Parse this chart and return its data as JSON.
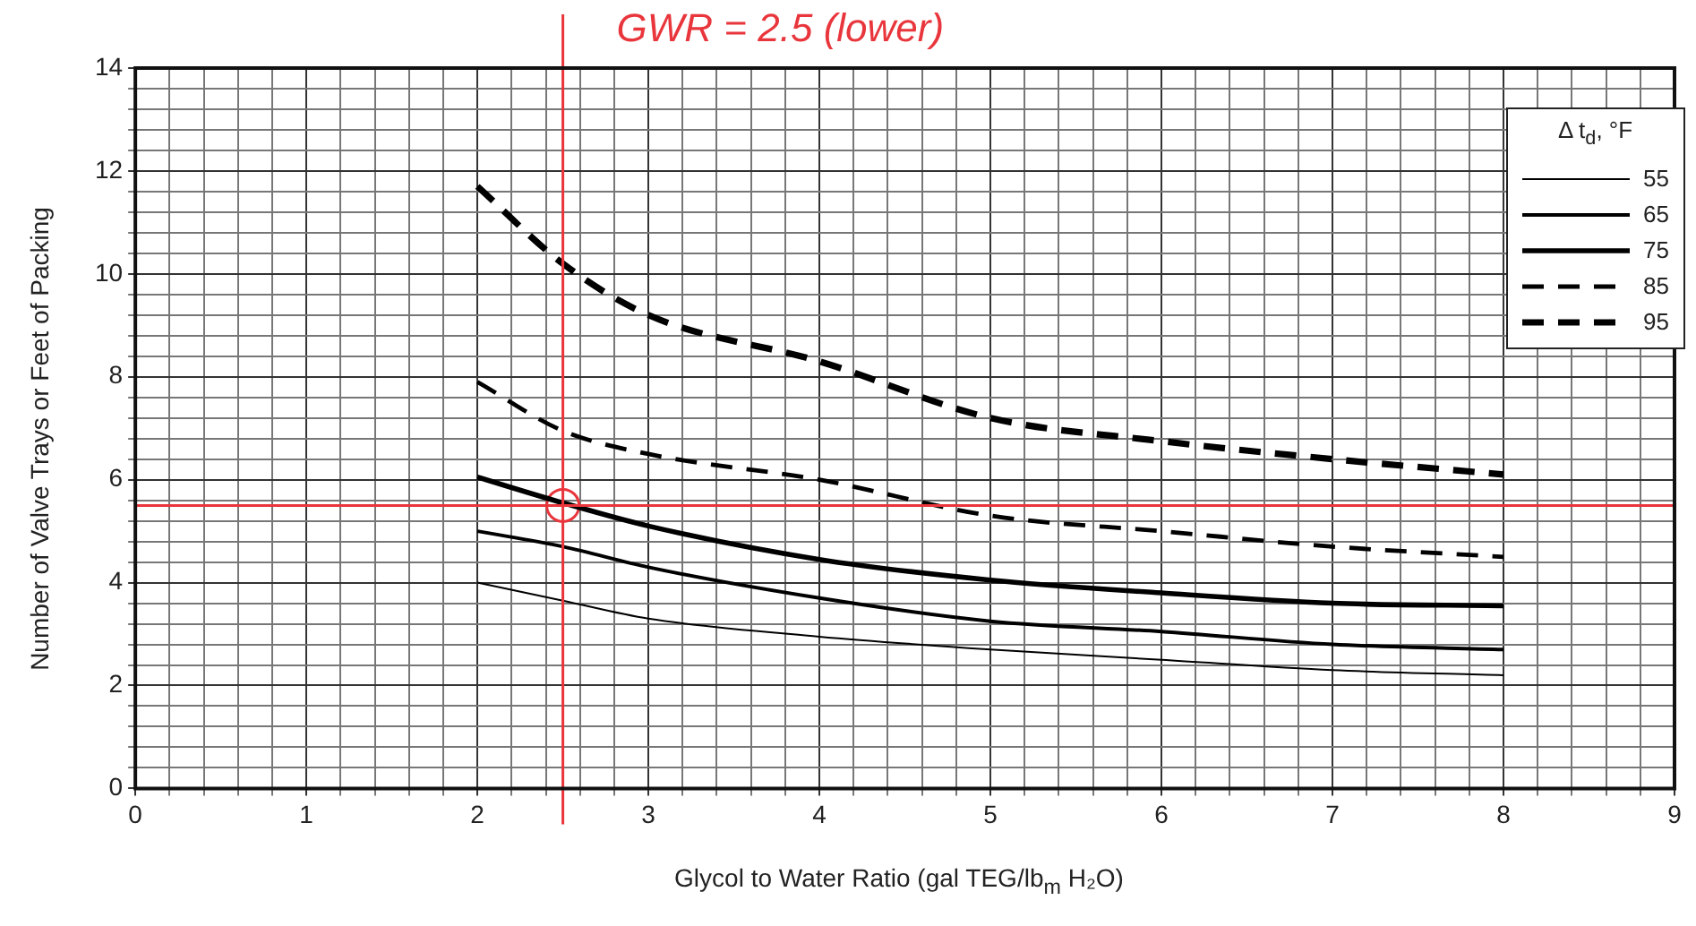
{
  "chart_data": {
    "type": "line",
    "xlabel": "Glycol to Water Ratio (gal TEG/lb$_{m}$ H₂O)",
    "ylabel": "Number of Valve Trays or Feet of Packing",
    "legend_title": "Δ t$_{d}$, °F",
    "x": [
      2,
      2.5,
      3,
      4,
      5,
      6,
      7,
      8
    ],
    "series": [
      {
        "name": "55",
        "color": "#000000",
        "line_style": "solid",
        "values": [
          4.0,
          3.65,
          3.3,
          2.95,
          2.7,
          2.5,
          2.3,
          2.2
        ]
      },
      {
        "name": "65",
        "color": "#000000",
        "line_style": "solid",
        "values": [
          5.0,
          4.7,
          4.3,
          3.7,
          3.25,
          3.05,
          2.8,
          2.7
        ]
      },
      {
        "name": "75",
        "color": "#000000",
        "line_style": "solid",
        "values": [
          6.05,
          5.55,
          5.1,
          4.45,
          4.05,
          3.8,
          3.6,
          3.55
        ]
      },
      {
        "name": "85",
        "color": "#000000",
        "line_style": "dashed",
        "values": [
          7.9,
          6.95,
          6.5,
          6.0,
          5.3,
          5.0,
          4.7,
          4.5
        ]
      },
      {
        "name": "95",
        "color": "#000000",
        "line_style": "dashed",
        "values": [
          11.7,
          10.2,
          9.2,
          8.3,
          7.2,
          6.75,
          6.4,
          6.1
        ]
      },
      {
        "type": "scatter",
        "x": [
          2.5
        ],
        "values": [
          5.5
        ],
        "color": "#e8363c",
        "marker": "circle"
      }
    ],
    "ref_lines": [
      {
        "axis": "x",
        "value": 2.5,
        "label": "GWR = 2.5 (lower)",
        "color": "#e8363c"
      },
      {
        "axis": "y",
        "value": 5.5,
        "color": "#e8363c"
      }
    ],
    "xlim": [
      0,
      9
    ],
    "ylim": [
      0,
      14
    ],
    "xticks": [
      0,
      {
        "value": 0.2,
        "label": null
      },
      {
        "value": 0.4,
        "label": null
      },
      {
        "value": 0.6,
        "label": null
      },
      {
        "value": 0.8,
        "label": null
      },
      1,
      {
        "value": 1.2,
        "label": null
      },
      {
        "value": 1.4,
        "label": null
      },
      {
        "value": 1.6,
        "label": null
      },
      {
        "value": 1.8,
        "label": null
      },
      2,
      {
        "value": 2.2,
        "label": null
      },
      {
        "value": 2.4,
        "label": null
      },
      {
        "value": 2.6,
        "label": null
      },
      {
        "value": 2.8,
        "label": null
      },
      3,
      {
        "value": 3.2,
        "label": null
      },
      {
        "value": 3.4,
        "label": null
      },
      {
        "value": 3.6,
        "label": null
      },
      {
        "value": 3.8,
        "label": null
      },
      4,
      {
        "value": 4.2,
        "label": null
      },
      {
        "value": 4.4,
        "label": null
      },
      {
        "value": 4.6,
        "label": null
      },
      {
        "value": 4.8,
        "label": null
      },
      5,
      {
        "value": 5.2,
        "label": null
      },
      {
        "value": 5.4,
        "label": null
      },
      {
        "value": 5.6,
        "label": null
      },
      {
        "value": 5.8,
        "label": null
      },
      6,
      {
        "value": 6.2,
        "label": null
      },
      {
        "value": 6.4,
        "label": null
      },
      {
        "value": 6.6,
        "label": null
      },
      {
        "value": 6.8,
        "label": null
      },
      7,
      {
        "value": 7.2,
        "label": null
      },
      {
        "value": 7.4,
        "label": null
      },
      {
        "value": 7.6,
        "label": null
      },
      {
        "value": 7.8,
        "label": null
      },
      8,
      {
        "value": 8.2,
        "label": null
      },
      {
        "value": 8.4,
        "label": null
      },
      {
        "value": 8.6,
        "label": null
      },
      {
        "value": 8.8,
        "label": null
      },
      9
    ],
    "yticks": [
      0,
      {
        "value": 0.4,
        "label": null
      },
      {
        "value": 0.8,
        "label": null
      },
      {
        "value": 1.2,
        "label": null
      },
      {
        "value": 1.6,
        "label": null
      },
      2,
      {
        "value": 2.4,
        "label": null
      },
      {
        "value": 2.8,
        "label": null
      },
      {
        "value": 3.2,
        "label": null
      },
      {
        "value": 3.6,
        "label": null
      },
      4,
      {
        "value": 4.4,
        "label": null
      },
      {
        "value": 4.8,
        "label": null
      },
      {
        "value": 5.2,
        "label": null
      },
      {
        "value": 5.6,
        "label": null
      },
      6,
      {
        "value": 6.4,
        "label": null
      },
      {
        "value": 6.8,
        "label": null
      },
      {
        "value": 7.2,
        "label": null
      },
      {
        "value": 7.6,
        "label": null
      },
      8,
      {
        "value": 8.4,
        "label": null
      },
      {
        "value": 8.8,
        "label": null
      },
      {
        "value": 9.2,
        "label": null
      },
      {
        "value": 9.6,
        "label": null
      },
      10,
      {
        "value": 10.4,
        "label": null
      },
      {
        "value": 10.8,
        "label": null
      },
      {
        "value": 11.2,
        "label": null
      },
      {
        "value": 11.6,
        "label": null
      },
      12,
      {
        "value": 12.4,
        "label": null
      },
      {
        "value": 12.8,
        "label": null
      },
      {
        "value": 13.2,
        "label": null
      },
      {
        "value": 13.6,
        "label": null
      },
      14
    ],
    "grid": true,
    "legend": "top right",
    "marker": "none"
  }
}
